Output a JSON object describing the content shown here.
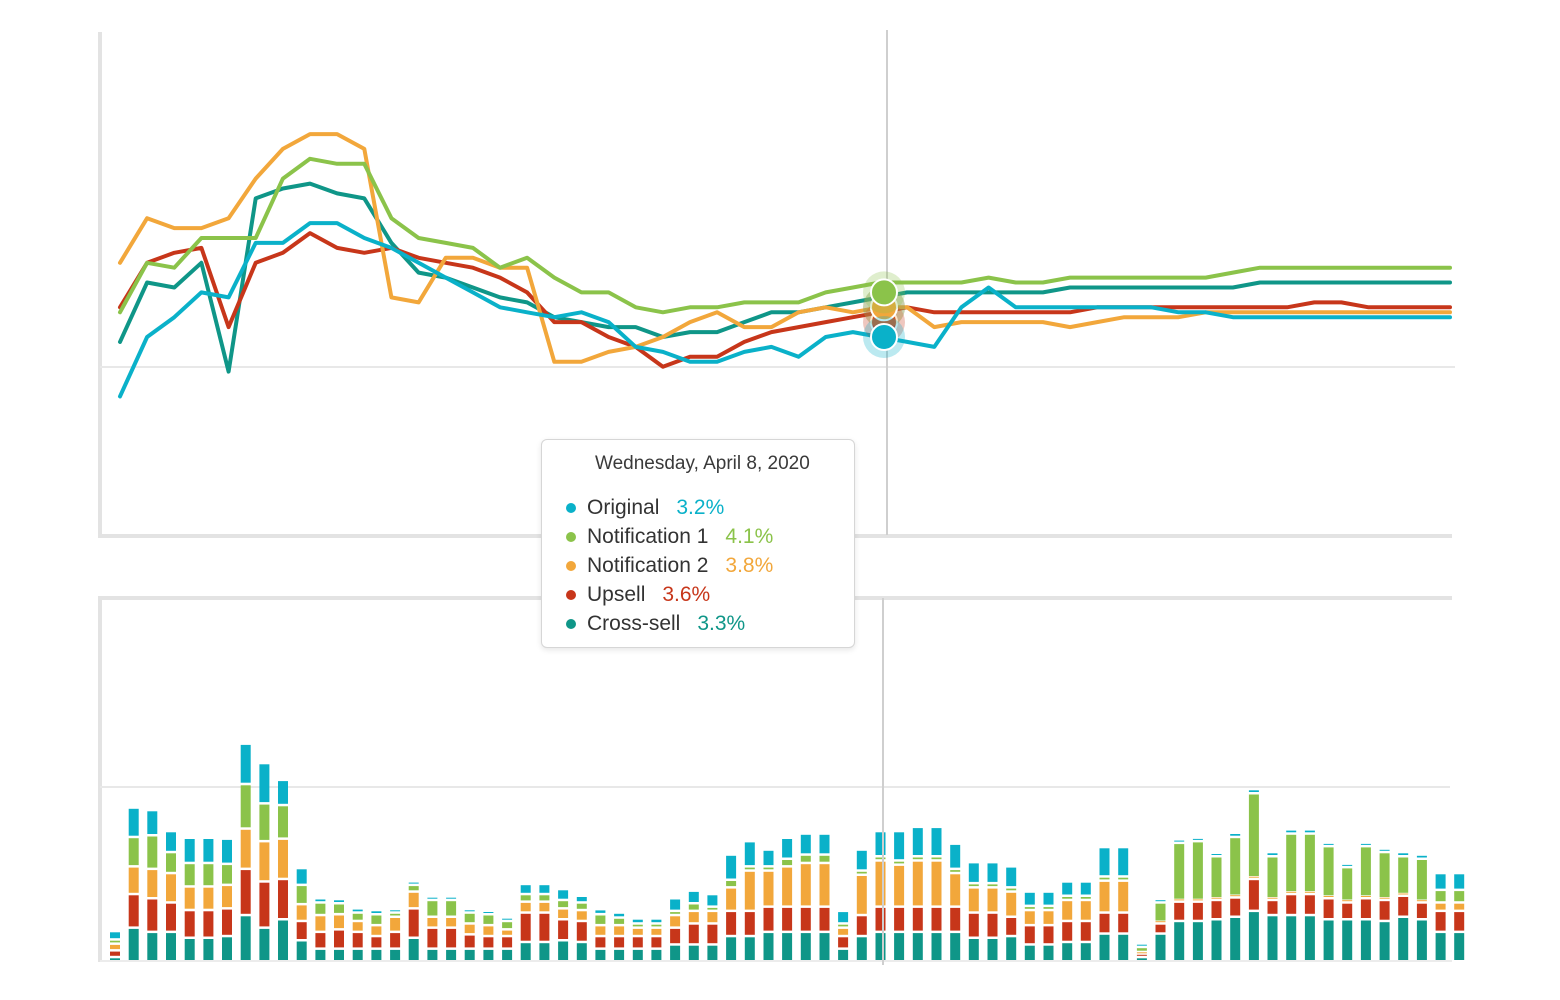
{
  "colors": {
    "original": "#0ab1c9",
    "notification1": "#8bc34a",
    "notification2": "#f2a73b",
    "upsell": "#c7361a",
    "crosssell": "#0f9688"
  },
  "tooltip": {
    "date": "Wednesday, April 8, 2020",
    "rows": [
      {
        "name": "Original",
        "value": "3.2%",
        "color": "#0ab1c9"
      },
      {
        "name": "Notification 1",
        "value": "4.1%",
        "color": "#8bc34a"
      },
      {
        "name": "Notification 2",
        "value": "3.8%",
        "color": "#f2a73b"
      },
      {
        "name": "Upsell",
        "value": "3.6%",
        "color": "#c7361a"
      },
      {
        "name": "Cross-sell",
        "value": "3.3%",
        "color": "#0f9688"
      }
    ]
  },
  "chart_data": [
    {
      "type": "line",
      "grid": true,
      "ylim": [
        0,
        10
      ],
      "highlight_index": 26,
      "series": [
        {
          "name": "Original",
          "color": "#0ab1c9",
          "values": [
            2.8,
            4.0,
            4.4,
            4.9,
            4.8,
            5.9,
            5.9,
            6.3,
            6.3,
            6.0,
            5.8,
            5.5,
            5.2,
            4.9,
            4.6,
            4.5,
            4.4,
            4.5,
            4.3,
            3.8,
            3.7,
            3.5,
            3.5,
            3.7,
            3.8,
            3.6,
            4.0,
            4.1,
            4.0,
            3.9,
            3.8,
            4.6,
            5.0,
            4.6,
            4.6,
            4.6,
            4.6,
            4.6,
            4.6,
            4.5,
            4.5,
            4.4,
            4.4,
            4.4,
            4.4,
            4.4,
            4.4,
            4.4,
            4.4,
            4.4
          ]
        },
        {
          "name": "Notification 1",
          "color": "#8bc34a",
          "values": [
            4.5,
            5.5,
            5.4,
            6.0,
            6.0,
            6.0,
            7.2,
            7.6,
            7.5,
            7.5,
            6.4,
            6.0,
            5.9,
            5.8,
            5.4,
            5.6,
            5.2,
            4.9,
            4.9,
            4.6,
            4.5,
            4.6,
            4.6,
            4.7,
            4.7,
            4.7,
            4.9,
            5.0,
            5.1,
            5.1,
            5.1,
            5.1,
            5.2,
            5.1,
            5.1,
            5.2,
            5.2,
            5.2,
            5.2,
            5.2,
            5.2,
            5.3,
            5.4,
            5.4,
            5.4,
            5.4,
            5.4,
            5.4,
            5.4,
            5.4
          ]
        },
        {
          "name": "Notification 2",
          "color": "#f2a73b",
          "values": [
            5.5,
            6.4,
            6.2,
            6.2,
            6.4,
            7.2,
            7.8,
            8.1,
            8.1,
            7.8,
            4.8,
            4.7,
            5.6,
            5.6,
            5.4,
            5.4,
            3.5,
            3.5,
            3.7,
            3.8,
            4.0,
            4.3,
            4.5,
            4.2,
            4.2,
            4.5,
            4.6,
            4.5,
            4.6,
            4.6,
            4.2,
            4.3,
            4.3,
            4.3,
            4.3,
            4.2,
            4.3,
            4.4,
            4.4,
            4.4,
            4.5,
            4.5,
            4.5,
            4.5,
            4.5,
            4.5,
            4.5,
            4.5,
            4.5,
            4.5
          ]
        },
        {
          "name": "Upsell",
          "color": "#c7361a",
          "values": [
            4.6,
            5.5,
            5.7,
            5.8,
            4.2,
            5.5,
            5.7,
            6.1,
            5.8,
            5.7,
            5.8,
            5.6,
            5.5,
            5.4,
            5.2,
            4.9,
            4.3,
            4.3,
            4.0,
            3.8,
            3.4,
            3.6,
            3.6,
            3.9,
            4.1,
            4.2,
            4.3,
            4.4,
            4.5,
            4.6,
            4.5,
            4.5,
            4.5,
            4.5,
            4.5,
            4.5,
            4.6,
            4.6,
            4.6,
            4.6,
            4.6,
            4.6,
            4.6,
            4.6,
            4.7,
            4.7,
            4.6,
            4.6,
            4.6,
            4.6
          ]
        },
        {
          "name": "Cross-sell",
          "color": "#0f9688",
          "values": [
            3.9,
            5.1,
            5.0,
            5.5,
            3.3,
            6.8,
            7.0,
            7.1,
            6.9,
            6.8,
            5.9,
            5.3,
            5.2,
            5.0,
            4.8,
            4.7,
            4.4,
            4.3,
            4.2,
            4.2,
            4.0,
            4.1,
            4.1,
            4.3,
            4.5,
            4.5,
            4.6,
            4.7,
            4.8,
            4.9,
            4.9,
            4.9,
            4.9,
            4.9,
            4.9,
            5.0,
            5.0,
            5.0,
            5.0,
            5.0,
            5.0,
            5.0,
            5.1,
            5.1,
            5.1,
            5.1,
            5.1,
            5.1,
            5.1,
            5.1
          ]
        }
      ]
    },
    {
      "type": "bar",
      "stacked": true,
      "grid": true,
      "highlight_index": 40,
      "series": [
        {
          "name": "Cross-sell",
          "color": "#0f9688",
          "values": [
            0.5,
            4.0,
            3.5,
            3.5,
            2.8,
            2.8,
            3.0,
            5.5,
            4.0,
            5.0,
            2.5,
            1.5,
            1.5,
            1.5,
            1.5,
            1.5,
            2.8,
            1.5,
            1.5,
            1.5,
            1.5,
            1.5,
            2.3,
            2.3,
            2.5,
            2.3,
            1.5,
            1.5,
            1.5,
            1.5,
            2.0,
            2.0,
            2.0,
            3.0,
            3.0,
            3.5,
            3.5,
            3.5,
            3.5,
            1.5,
            3.0,
            3.5,
            3.5,
            3.5,
            3.5,
            3.5,
            2.8,
            2.8,
            3.0,
            2.0,
            2.0,
            2.3,
            2.3,
            3.3,
            3.3,
            0.5,
            3.3,
            4.8,
            4.8,
            5.0,
            5.3,
            6.0,
            5.5,
            5.5,
            5.5,
            5.0,
            5.0,
            5.0,
            4.8,
            5.3,
            5.0,
            3.5,
            3.5
          ]
        },
        {
          "name": "Upsell",
          "color": "#c7361a",
          "values": [
            0.8,
            4.0,
            4.0,
            3.5,
            3.3,
            3.3,
            3.3,
            5.5,
            5.5,
            4.8,
            2.3,
            2.0,
            2.3,
            2.0,
            1.5,
            2.0,
            3.5,
            2.5,
            2.5,
            1.7,
            1.5,
            1.5,
            3.5,
            3.5,
            2.5,
            2.5,
            1.5,
            1.5,
            1.5,
            1.5,
            2.0,
            2.5,
            2.5,
            3.0,
            3.0,
            3.0,
            3.0,
            3.0,
            3.0,
            1.5,
            2.5,
            3.0,
            3.0,
            3.0,
            3.0,
            3.0,
            3.0,
            3.0,
            2.3,
            2.3,
            2.3,
            2.5,
            2.5,
            2.5,
            2.5,
            0.3,
            1.2,
            2.3,
            2.3,
            2.3,
            2.3,
            3.8,
            1.8,
            2.5,
            2.5,
            2.5,
            2.0,
            2.5,
            2.5,
            2.5,
            2.0,
            2.5,
            2.5
          ]
        },
        {
          "name": "Notification 2",
          "color": "#f2a73b",
          "values": [
            0.8,
            3.3,
            3.5,
            3.5,
            2.8,
            2.8,
            2.8,
            4.8,
            4.8,
            4.8,
            2.0,
            2.0,
            1.8,
            1.3,
            1.3,
            1.8,
            2.0,
            1.3,
            1.3,
            1.3,
            1.3,
            0.8,
            1.3,
            1.3,
            1.3,
            1.3,
            1.3,
            1.3,
            1.0,
            1.0,
            1.5,
            1.5,
            1.5,
            2.8,
            4.8,
            4.3,
            4.8,
            5.2,
            5.2,
            1.0,
            4.8,
            5.5,
            5.0,
            5.5,
            5.5,
            4.0,
            3.0,
            3.0,
            3.0,
            1.8,
            1.8,
            2.5,
            2.5,
            3.8,
            3.8,
            0.3,
            0.2,
            0.2,
            0.2,
            0.2,
            0.2,
            0.2,
            0.2,
            0.2,
            0.2,
            0.2,
            0.2,
            0.2,
            0.2,
            0.2,
            0.2,
            1.0,
            1.0
          ]
        },
        {
          "name": "Notification 1",
          "color": "#8bc34a",
          "values": [
            0.5,
            3.5,
            4.0,
            2.5,
            2.8,
            2.8,
            2.5,
            5.3,
            4.5,
            4.0,
            2.3,
            1.5,
            1.3,
            1.0,
            1.3,
            0.5,
            0.8,
            2.0,
            2.0,
            1.3,
            1.3,
            1.0,
            0.9,
            0.9,
            1.0,
            0.9,
            1.3,
            0.9,
            0.5,
            0.5,
            0.5,
            0.9,
            0.5,
            0.9,
            0.5,
            0.5,
            0.9,
            1.0,
            1.0,
            0.5,
            0.5,
            0.5,
            0.5,
            0.5,
            0.5,
            0.5,
            0.5,
            0.5,
            0.5,
            0.5,
            0.5,
            0.5,
            0.5,
            0.5,
            0.5,
            0.6,
            2.3,
            6.8,
            7.0,
            5.0,
            7.0,
            10.0,
            5.0,
            7.0,
            7.0,
            6.0,
            4.0,
            6.0,
            5.5,
            4.5,
            5.0,
            1.5,
            1.5
          ]
        },
        {
          "name": "Original",
          "color": "#0ab1c9",
          "values": [
            1.0,
            3.5,
            3.0,
            2.5,
            3.0,
            3.0,
            3.0,
            4.8,
            4.8,
            3.0,
            2.0,
            0.5,
            0.5,
            0.5,
            0.5,
            0.3,
            0.3,
            0.3,
            0.3,
            0.3,
            0.3,
            0.3,
            1.2,
            1.2,
            1.3,
            0.8,
            0.6,
            0.6,
            0.6,
            0.6,
            1.5,
            1.5,
            1.5,
            3.0,
            3.0,
            2.0,
            2.5,
            2.5,
            2.5,
            1.5,
            2.5,
            3.0,
            3.5,
            3.5,
            3.5,
            3.0,
            2.5,
            2.5,
            2.5,
            1.7,
            1.7,
            1.7,
            1.7,
            3.5,
            3.5,
            0.3,
            0.2,
            0.2,
            0.2,
            0.2,
            0.5,
            0.5,
            0.5,
            0.5,
            0.5,
            0.2,
            0.2,
            0.2,
            0.2,
            0.5,
            0.5,
            2.0,
            2.0
          ]
        }
      ]
    }
  ]
}
